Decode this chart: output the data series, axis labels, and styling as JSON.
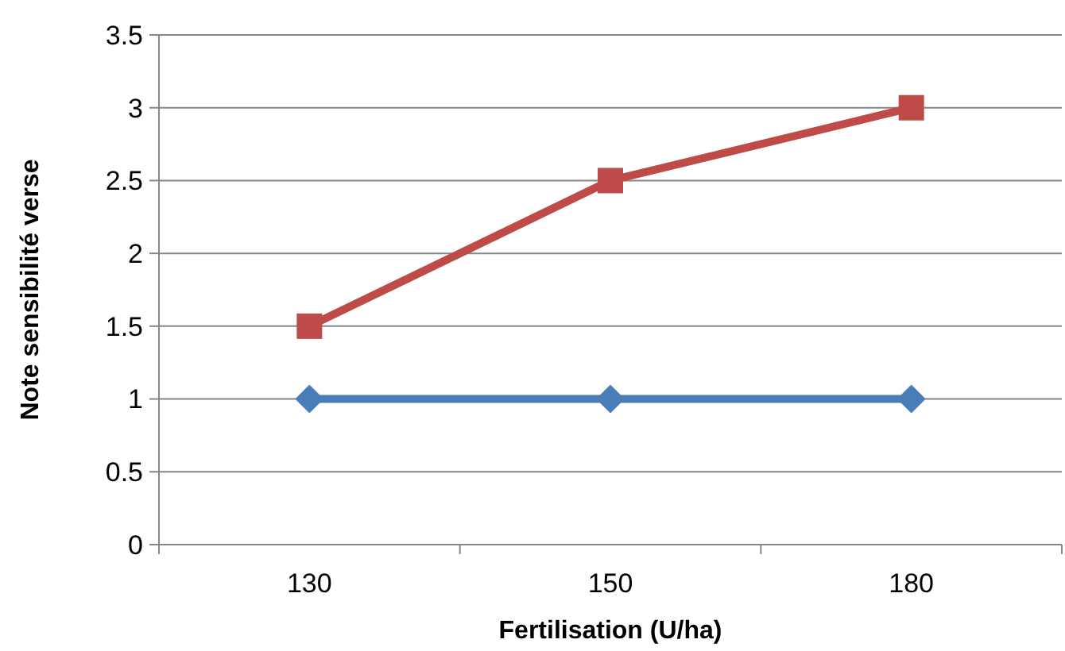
{
  "chart_data": {
    "type": "line",
    "xlabel": "Fertilisation (U/ha)",
    "ylabel": "Note sensibilité verse",
    "categories": [
      "130",
      "150",
      "180"
    ],
    "series": [
      {
        "color": "#4a7ebb",
        "marker": "diamond",
        "values": [
          1,
          1,
          1
        ]
      },
      {
        "color": "#be4b48",
        "marker": "square",
        "values": [
          1.5,
          2.5,
          3
        ]
      }
    ],
    "ylim": [
      0,
      3.5
    ],
    "yticks": [
      0,
      0.5,
      1,
      1.5,
      2,
      2.5,
      3,
      3.5
    ],
    "grid": "y",
    "line_style": "solid"
  }
}
